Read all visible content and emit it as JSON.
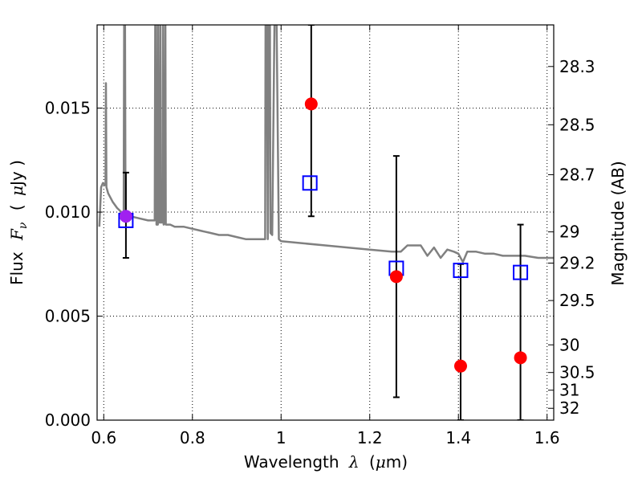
{
  "chart_data": {
    "type": "scatter",
    "title": "",
    "xlabel": {
      "prefix": "Wavelength",
      "symbol": "λ",
      "unit_open": "(",
      "unit_mu": "μ",
      "unit_rest": "m)"
    },
    "ylabel": {
      "prefix": "Flux",
      "symbol": "F",
      "subscript": "ν",
      "unit_open": "(",
      "unit_mu": "μ",
      "unit_rest": "Jy )"
    },
    "y2label": "Magnitude (AB)",
    "xlim": [
      0.585,
      1.615
    ],
    "ylim": [
      0.0,
      0.019
    ],
    "grid": true,
    "grid_style": "dotted",
    "xticks": [
      0.6,
      0.8,
      1.0,
      1.2,
      1.4,
      1.6
    ],
    "xtick_labels": [
      "0.6",
      "0.8",
      "1",
      "1.2",
      "1.4",
      "1.6"
    ],
    "yticks": [
      0.0,
      0.005,
      0.01,
      0.015
    ],
    "ytick_labels": [
      "0.000",
      "0.005",
      "0.010",
      "0.015"
    ],
    "y2ticks": [
      {
        "label": "28.3",
        "flux": 0.017
      },
      {
        "label": "28.5",
        "flux": 0.0142
      },
      {
        "label": "28.7",
        "flux": 0.0118
      },
      {
        "label": "29",
        "flux": 0.00905
      },
      {
        "label": "29.2",
        "flux": 0.00755
      },
      {
        "label": "29.5",
        "flux": 0.00575
      },
      {
        "label": "30",
        "flux": 0.00362
      },
      {
        "label": "30.5",
        "flux": 0.00229
      },
      {
        "label": "31",
        "flux": 0.00144
      },
      {
        "label": "32",
        "flux": 0.00057
      }
    ],
    "series": [
      {
        "kind": "model_spectrum",
        "color": "#808080",
        "points": [
          [
            0.59,
            0.0093
          ],
          [
            0.594,
            0.0112
          ],
          [
            0.598,
            0.0114
          ],
          [
            0.602,
            0.0113
          ],
          [
            0.604,
            0.0113
          ],
          [
            0.605,
            0.0162
          ],
          [
            0.606,
            0.0112
          ],
          [
            0.61,
            0.0109
          ],
          [
            0.62,
            0.0105
          ],
          [
            0.63,
            0.0102
          ],
          [
            0.64,
            0.01
          ],
          [
            0.645,
            0.0098
          ],
          [
            0.646,
            0.019
          ],
          [
            0.648,
            0.019
          ],
          [
            0.649,
            0.0098
          ],
          [
            0.66,
            0.0098
          ],
          [
            0.68,
            0.0097
          ],
          [
            0.7,
            0.0096
          ],
          [
            0.715,
            0.0096
          ],
          [
            0.716,
            0.019
          ],
          [
            0.718,
            0.019
          ],
          [
            0.719,
            0.0094
          ],
          [
            0.722,
            0.0094
          ],
          [
            0.723,
            0.019
          ],
          [
            0.724,
            0.0095
          ],
          [
            0.727,
            0.0095
          ],
          [
            0.728,
            0.019
          ],
          [
            0.729,
            0.0095
          ],
          [
            0.733,
            0.0095
          ],
          [
            0.734,
            0.019
          ],
          [
            0.735,
            0.0094
          ],
          [
            0.738,
            0.0095
          ],
          [
            0.739,
            0.019
          ],
          [
            0.74,
            0.0094
          ],
          [
            0.75,
            0.0094
          ],
          [
            0.76,
            0.0093
          ],
          [
            0.77,
            0.0093
          ],
          [
            0.78,
            0.0093
          ],
          [
            0.8,
            0.0092
          ],
          [
            0.82,
            0.0091
          ],
          [
            0.84,
            0.009
          ],
          [
            0.86,
            0.0089
          ],
          [
            0.88,
            0.0089
          ],
          [
            0.9,
            0.0088
          ],
          [
            0.92,
            0.0087
          ],
          [
            0.94,
            0.0087
          ],
          [
            0.96,
            0.0087
          ],
          [
            0.964,
            0.0087
          ],
          [
            0.965,
            0.019
          ],
          [
            0.968,
            0.019
          ],
          [
            0.97,
            0.0087
          ],
          [
            0.972,
            0.019
          ],
          [
            0.975,
            0.019
          ],
          [
            0.976,
            0.009
          ],
          [
            0.98,
            0.0089
          ],
          [
            0.985,
            0.019
          ],
          [
            0.99,
            0.019
          ],
          [
            0.995,
            0.0087
          ],
          [
            1.0,
            0.0086
          ],
          [
            1.05,
            0.0085
          ],
          [
            1.1,
            0.0084
          ],
          [
            1.15,
            0.0083
          ],
          [
            1.2,
            0.0082
          ],
          [
            1.25,
            0.0081
          ],
          [
            1.27,
            0.0081
          ],
          [
            1.285,
            0.0084
          ],
          [
            1.315,
            0.0084
          ],
          [
            1.33,
            0.0079
          ],
          [
            1.345,
            0.0083
          ],
          [
            1.36,
            0.0078
          ],
          [
            1.375,
            0.0082
          ],
          [
            1.39,
            0.0081
          ],
          [
            1.4,
            0.008
          ],
          [
            1.41,
            0.0076
          ],
          [
            1.42,
            0.0081
          ],
          [
            1.44,
            0.0081
          ],
          [
            1.46,
            0.008
          ],
          [
            1.48,
            0.008
          ],
          [
            1.5,
            0.0079
          ],
          [
            1.52,
            0.0079
          ],
          [
            1.55,
            0.0079
          ],
          [
            1.58,
            0.0078
          ],
          [
            1.6,
            0.0078
          ],
          [
            1.615,
            0.0078
          ]
        ]
      },
      {
        "kind": "model_photometry",
        "marker": "open_square",
        "color": "#0000ff",
        "points": [
          [
            0.65,
            0.0096
          ],
          [
            1.065,
            0.0114
          ],
          [
            1.26,
            0.0073
          ],
          [
            1.405,
            0.0072
          ],
          [
            1.54,
            0.0071
          ]
        ]
      },
      {
        "kind": "observed",
        "marker": "filled_circle",
        "color": "#ff0000",
        "error_color": "#000000",
        "points": [
          {
            "x": 0.65,
            "y": 0.0098,
            "ylow": 0.0078,
            "yhigh": 0.0119,
            "color": "#a020f0"
          },
          {
            "x": 1.068,
            "y": 0.0152,
            "ylow": 0.0098,
            "yhigh": 0.019
          },
          {
            "x": 1.26,
            "y": 0.0069,
            "ylow": 0.0011,
            "yhigh": 0.0127
          },
          {
            "x": 1.405,
            "y": 0.0026,
            "ylow": 0.0,
            "yhigh": 0.0075
          },
          {
            "x": 1.54,
            "y": 0.003,
            "ylow": 0.0,
            "yhigh": 0.0094
          }
        ]
      }
    ]
  }
}
